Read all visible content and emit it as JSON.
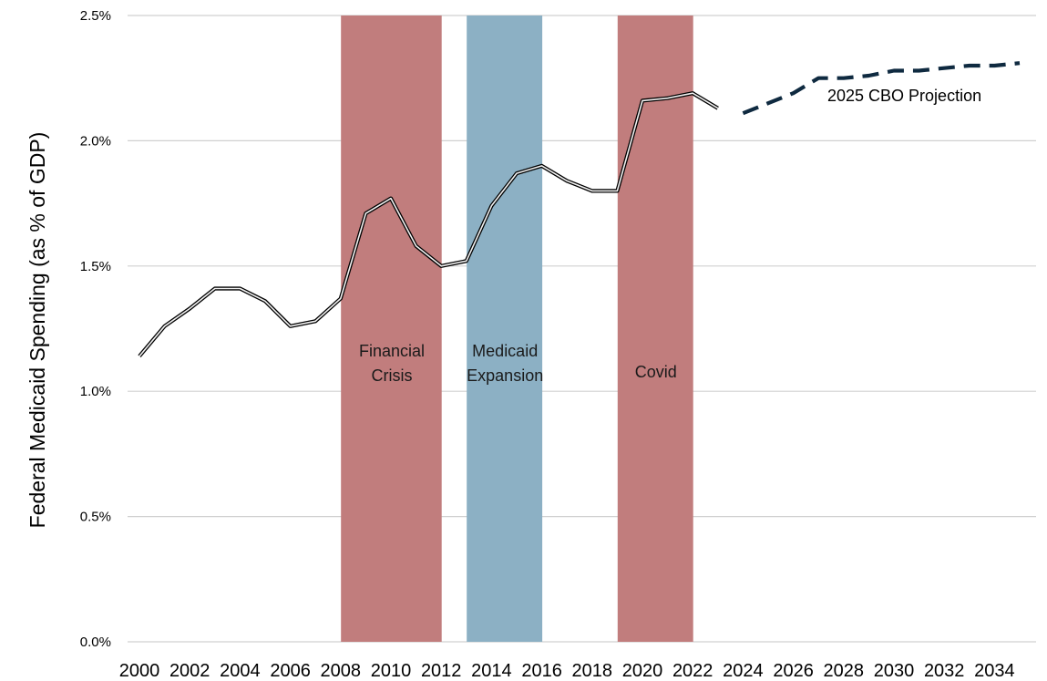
{
  "chart_data": {
    "type": "line",
    "ylabel": "Federal Medicaid Spending (as % of GDP)",
    "ylim": [
      0,
      2.5
    ],
    "y_ticks": [
      {
        "value": 0.0,
        "label": "0.0%"
      },
      {
        "value": 0.5,
        "label": "0.5%"
      },
      {
        "value": 1.0,
        "label": "1.0%"
      },
      {
        "value": 1.5,
        "label": "1.5%"
      },
      {
        "value": 2.0,
        "label": "2.0%"
      },
      {
        "value": 2.5,
        "label": "2.5%"
      }
    ],
    "xlim": [
      2000,
      2035
    ],
    "x_ticks": [
      {
        "value": 2000,
        "label": "2000"
      },
      {
        "value": 2002,
        "label": "2002"
      },
      {
        "value": 2004,
        "label": "2004"
      },
      {
        "value": 2006,
        "label": "2006"
      },
      {
        "value": 2008,
        "label": "2008"
      },
      {
        "value": 2010,
        "label": "2010"
      },
      {
        "value": 2012,
        "label": "2012"
      },
      {
        "value": 2014,
        "label": "2014"
      },
      {
        "value": 2016,
        "label": "2016"
      },
      {
        "value": 2018,
        "label": "2018"
      },
      {
        "value": 2020,
        "label": "2020"
      },
      {
        "value": 2022,
        "label": "2022"
      },
      {
        "value": 2024,
        "label": "2024"
      },
      {
        "value": 2026,
        "label": "2026"
      },
      {
        "value": 2028,
        "label": "2028"
      },
      {
        "value": 2030,
        "label": "2030"
      },
      {
        "value": 2032,
        "label": "2032"
      },
      {
        "value": 2034,
        "label": "2034"
      }
    ],
    "grid": true,
    "bands": [
      {
        "label_lines": [
          "Financial",
          "Crisis"
        ],
        "start": 2008,
        "end": 2012,
        "color": "#c17d7d"
      },
      {
        "label_lines": [
          "Medicaid",
          "Expansion"
        ],
        "start": 2013,
        "end": 2016,
        "color": "#8cb0c4"
      },
      {
        "label_lines": [
          "Covid"
        ],
        "start": 2019,
        "end": 2022,
        "color": "#c17d7d"
      }
    ],
    "series": [
      {
        "style": "double-line",
        "color": "#000000",
        "x": [
          2000,
          2001,
          2002,
          2003,
          2004,
          2005,
          2006,
          2007,
          2008,
          2009,
          2010,
          2011,
          2012,
          2013,
          2014,
          2015,
          2016,
          2017,
          2018,
          2019,
          2020,
          2021,
          2022,
          2023
        ],
        "y": [
          1.14,
          1.26,
          1.33,
          1.41,
          1.41,
          1.36,
          1.26,
          1.28,
          1.37,
          1.71,
          1.77,
          1.58,
          1.5,
          1.52,
          1.74,
          1.87,
          1.9,
          1.84,
          1.8,
          1.8,
          2.16,
          2.17,
          2.19,
          2.13
        ]
      },
      {
        "name": "2025 CBO Projection",
        "style": "dashed",
        "color": "#0f2a40",
        "x": [
          2024,
          2025,
          2026,
          2027,
          2028,
          2029,
          2030,
          2031,
          2032,
          2033,
          2034,
          2035
        ],
        "y": [
          2.11,
          2.15,
          2.19,
          2.25,
          2.25,
          2.26,
          2.28,
          2.28,
          2.29,
          2.3,
          2.3,
          2.31
        ]
      }
    ]
  }
}
